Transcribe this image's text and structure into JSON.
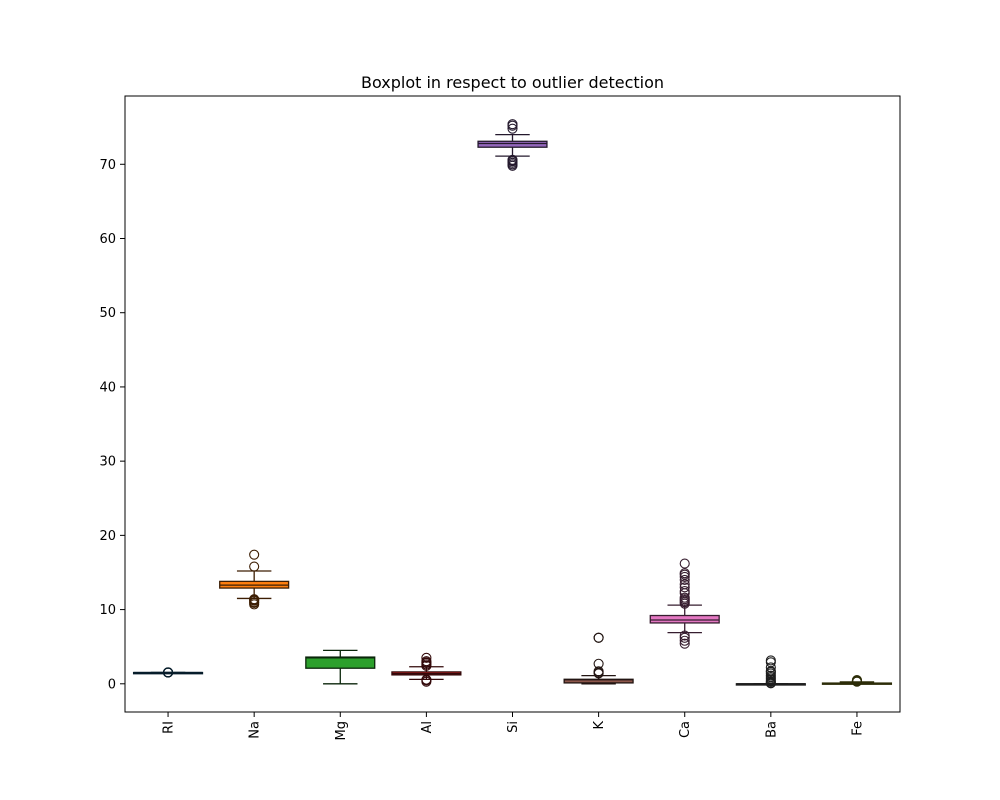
{
  "chart_data": {
    "type": "boxplot",
    "title": "Boxplot in respect to outlier detection",
    "xlabel": "",
    "ylabel": "",
    "ylim": [
      -3.8,
      79.2
    ],
    "yticks": [
      0,
      10,
      20,
      30,
      40,
      50,
      60,
      70
    ],
    "grid": false,
    "legend": "none",
    "categories": [
      "RI",
      "Na",
      "Mg",
      "Al",
      "Si",
      "K",
      "Ca",
      "Ba",
      "Fe"
    ],
    "series": [
      {
        "category": "RI",
        "color": "#1f77b4",
        "whisker_low": 1.514,
        "q1": 1.517,
        "median": 1.518,
        "q3": 1.519,
        "whisker_high": 1.523,
        "outliers": [
          1.511,
          1.512,
          1.525,
          1.527,
          1.529,
          1.531,
          1.534
        ]
      },
      {
        "category": "Na",
        "color": "#ff7f0e",
        "whisker_low": 11.5,
        "q1": 12.9,
        "median": 13.3,
        "q3": 13.8,
        "whisker_high": 15.2,
        "outliers": [
          10.7,
          10.9,
          11.0,
          11.2,
          11.3,
          11.4,
          15.8,
          17.4
        ]
      },
      {
        "category": "Mg",
        "color": "#2ca02c",
        "whisker_low": 0.0,
        "q1": 2.1,
        "median": 3.5,
        "q3": 3.6,
        "whisker_high": 4.5,
        "outliers": []
      },
      {
        "category": "Al",
        "color": "#d62728",
        "whisker_low": 0.6,
        "q1": 1.2,
        "median": 1.36,
        "q3": 1.6,
        "whisker_high": 2.3,
        "outliers": [
          0.29,
          0.47,
          0.56,
          2.42,
          2.6,
          2.79,
          2.88,
          3.04,
          3.5
        ]
      },
      {
        "category": "Si",
        "color": "#9467bd",
        "whisker_low": 71.1,
        "q1": 72.3,
        "median": 72.8,
        "q3": 73.1,
        "whisker_high": 74.0,
        "outliers": [
          69.8,
          70.0,
          70.2,
          70.4,
          70.5,
          70.6,
          74.8,
          75.2,
          75.4
        ]
      },
      {
        "category": "K",
        "color": "#8c564b",
        "whisker_low": 0.0,
        "q1": 0.12,
        "median": 0.55,
        "q3": 0.61,
        "whisker_high": 1.1,
        "outliers": [
          1.4,
          1.5,
          1.68,
          2.7,
          6.2,
          6.21
        ]
      },
      {
        "category": "Ca",
        "color": "#e377c2",
        "whisker_low": 6.9,
        "q1": 8.2,
        "median": 8.6,
        "q3": 9.2,
        "whisker_high": 10.6,
        "outliers": [
          5.4,
          5.8,
          6.2,
          6.5,
          10.8,
          11.0,
          11.2,
          11.4,
          11.6,
          12.2,
          12.5,
          13.0,
          13.4,
          14.0,
          14.4,
          14.7,
          14.9,
          16.2
        ]
      },
      {
        "category": "Ba",
        "color": "#7f7f7f",
        "whisker_low": 0.0,
        "q1": 0.0,
        "median": 0.0,
        "q3": 0.0,
        "whisker_high": 0.0,
        "outliers": [
          0.06,
          0.15,
          0.3,
          0.5,
          0.7,
          0.9,
          1.1,
          1.4,
          1.6,
          1.7,
          2.2,
          2.9,
          3.15
        ]
      },
      {
        "category": "Fe",
        "color": "#bcbd22",
        "whisker_low": 0.0,
        "q1": 0.0,
        "median": 0.0,
        "q3": 0.1,
        "whisker_high": 0.25,
        "outliers": [
          0.28,
          0.31,
          0.34,
          0.37,
          0.4,
          0.45,
          0.51
        ]
      }
    ]
  }
}
